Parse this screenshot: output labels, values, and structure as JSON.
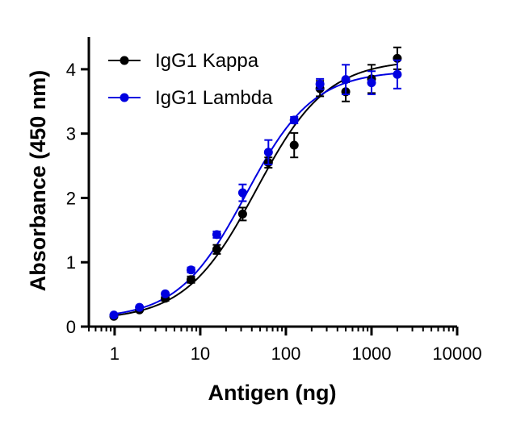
{
  "chart_data": {
    "type": "scatter",
    "title": "",
    "xlabel": "Antigen (ng)",
    "ylabel": "Absorbance (450 nm)",
    "x_scale": "log",
    "xlim": [
      0.5,
      10000
    ],
    "ylim": [
      0,
      4.5
    ],
    "x_ticks": [
      1,
      10,
      100,
      1000,
      10000
    ],
    "x_tick_labels": [
      "1",
      "10",
      "100",
      "1000",
      "10000"
    ],
    "y_ticks": [
      0,
      1,
      2,
      3,
      4
    ],
    "y_tick_labels": [
      "0",
      "1",
      "2",
      "3",
      "4"
    ],
    "grid": false,
    "legend": "top-left",
    "x": [
      0.98,
      1.95,
      3.9,
      7.8,
      15.6,
      31.25,
      62.5,
      125,
      250,
      500,
      1000,
      2000
    ],
    "series": [
      {
        "name": "IgG1 Kappa",
        "color": "#000000",
        "values": [
          0.16,
          0.26,
          0.44,
          0.73,
          1.2,
          1.75,
          2.55,
          2.82,
          3.7,
          3.65,
          3.85,
          4.17
        ],
        "errors": [
          0.02,
          0.03,
          0.04,
          0.05,
          0.07,
          0.1,
          0.08,
          0.19,
          0.12,
          0.15,
          0.22,
          0.17
        ],
        "fit": {
          "bottom": 0.1,
          "top": 4.15,
          "ec50": 45,
          "hill": 1.05
        }
      },
      {
        "name": "IgG1 Lambda",
        "color": "#0000e0",
        "values": [
          0.18,
          0.3,
          0.51,
          0.88,
          1.43,
          2.08,
          2.71,
          3.21,
          3.77,
          3.84,
          3.79,
          3.92
        ],
        "errors": [
          0.02,
          0.02,
          0.03,
          0.04,
          0.05,
          0.13,
          0.19,
          0.05,
          0.08,
          0.23,
          0.18,
          0.22
        ],
        "fit": {
          "bottom": 0.12,
          "top": 3.98,
          "ec50": 34,
          "hill": 1.1
        }
      }
    ]
  }
}
